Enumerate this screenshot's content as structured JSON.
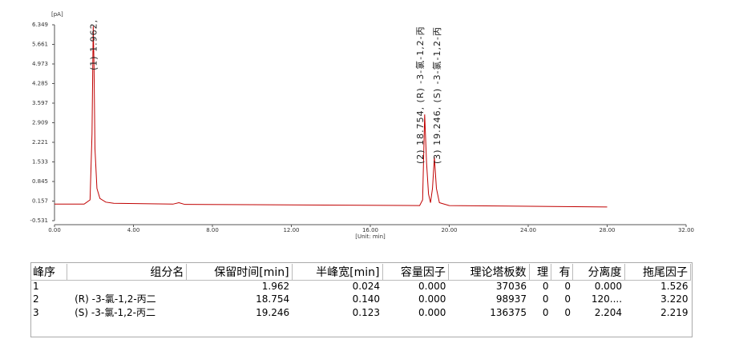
{
  "chart_data": {
    "type": "line",
    "y_label": "[pA]",
    "x_label": "[Unit: min]",
    "xlim": [
      0,
      32
    ],
    "ylim": [
      -0.531,
      6.349
    ],
    "xticks": [
      {
        "value": 0,
        "label": "0.00"
      },
      {
        "value": 4,
        "label": "4.00"
      },
      {
        "value": 8,
        "label": "8.00"
      },
      {
        "value": 12,
        "label": "12.00"
      },
      {
        "value": 16,
        "label": "16.00"
      },
      {
        "value": 20,
        "label": "20.00"
      },
      {
        "value": 24,
        "label": "24.00"
      },
      {
        "value": 28,
        "label": "28.00"
      },
      {
        "value": 32,
        "label": "32.00"
      }
    ],
    "yticks": [
      -0.531,
      0.157,
      0.845,
      1.533,
      2.221,
      2.909,
      3.597,
      4.285,
      4.973,
      5.661,
      6.349
    ],
    "x": [
      0,
      1.5,
      1.8,
      1.9,
      1.962,
      2.0,
      2.05,
      2.15,
      2.3,
      2.6,
      3,
      6,
      6.3,
      6.6,
      10,
      18.5,
      18.65,
      18.754,
      18.85,
      18.95,
      19.05,
      19.15,
      19.246,
      19.35,
      19.5,
      20,
      28
    ],
    "series": [
      {
        "color": "#c00000",
        "values": [
          0.05,
          0.05,
          0.2,
          2.5,
          6.3,
          5.0,
          2.0,
          0.6,
          0.25,
          0.12,
          0.08,
          0.05,
          0.1,
          0.04,
          0.03,
          0.0,
          0.2,
          3.2,
          1.5,
          0.4,
          0.1,
          0.6,
          1.7,
          0.6,
          0.1,
          0.0,
          -0.05
        ]
      }
    ],
    "annotations": [
      {
        "x": 1.962,
        "text": "(1) 1.962,"
      },
      {
        "x": 18.754,
        "text": "(2) 18.754, (R) -3-氯-1,2-丙"
      },
      {
        "x": 19.246,
        "text": "(3) 19.246, (S) -3-氯-1,2-丙"
      }
    ]
  },
  "table": {
    "headers": [
      "峰序",
      "组分名",
      "保留时间[min]",
      "半峰宽[min]",
      "容量因子",
      "理论塔板数",
      "理",
      "有",
      "分离度",
      "拖尾因子"
    ],
    "rows": [
      [
        "1",
        null,
        "1.962",
        "0.024",
        "0.000",
        "37036",
        "0",
        "0",
        "0.000",
        "1.526"
      ],
      [
        "2",
        "(R) -3-氯-1,2-丙二",
        "18.754",
        "0.140",
        "0.000",
        "98937",
        "0",
        "0",
        "120....",
        "3.220"
      ],
      [
        "3",
        "(S) -3-氯-1,2-丙二",
        "19.246",
        "0.123",
        "0.000",
        "136375",
        "0",
        "0",
        "2.204",
        "2.219"
      ]
    ]
  }
}
